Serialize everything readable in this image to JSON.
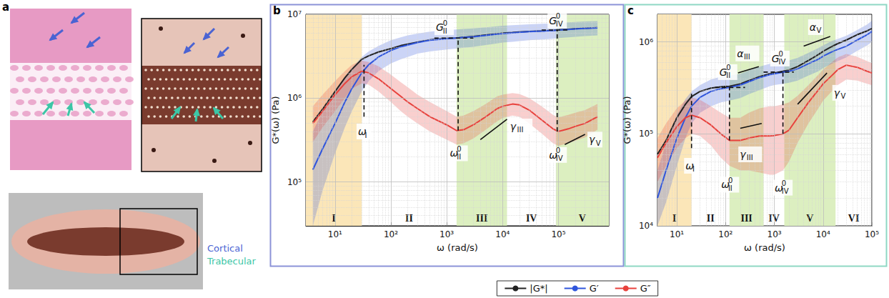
{
  "panel_a": {
    "panel": "a",
    "labels": [
      {
        "text": "Cortical",
        "color": "#4a63d3"
      },
      {
        "text": "Trabecular",
        "color": "#3cc6a6"
      }
    ]
  },
  "chart_data": [
    {
      "type": "line",
      "panel": "b",
      "log": true,
      "grid": true,
      "legend": "bottom",
      "x_label": "ω (rad/s)",
      "y_label": "G*(ω) (Pa)",
      "xlim": [
        3,
        800000.0
      ],
      "ylim": [
        30000.0,
        10000000.0
      ],
      "xticks": [
        {
          "value": 10,
          "label": "10¹"
        },
        {
          "value": 100,
          "label": "10²"
        },
        {
          "value": 1000,
          "label": "10³"
        },
        {
          "value": 10000,
          "label": "10⁴"
        },
        {
          "value": 100000,
          "label": "10⁵"
        }
      ],
      "yticks": [
        {
          "value": 100000,
          "label": "10⁵"
        },
        {
          "value": 1000000,
          "label": "10⁶"
        },
        {
          "value": 10000000,
          "label": "10⁷"
        }
      ],
      "x": [
        4,
        6,
        10,
        15,
        20,
        30,
        40,
        60,
        100,
        150,
        200,
        300,
        500,
        1000,
        1500,
        2000,
        3000,
        5000,
        8000,
        10000.0,
        15000.0,
        20000.0,
        30000.0,
        50000.0,
        80000.0,
        100000.0,
        150000.0,
        200000.0,
        300000.0,
        500000.0
      ],
      "series": [
        {
          "name": "|G*|",
          "color": "#222222",
          "values": [
            520000.0,
            740000.0,
            1200000.0,
            1750000.0,
            2200000.0,
            2900000.0,
            3200000.0,
            3550000.0,
            3900000.0,
            4230000.0,
            4400000.0,
            4650000.0,
            4950000.0,
            5150000.0,
            5220000.0,
            5320000.0,
            5430000.0,
            5650000.0,
            5860000.0,
            5960000.0,
            6060000.0,
            6150000.0,
            6240000.0,
            6330000.0,
            6420000.0,
            6520000.0,
            6620000.0,
            6720000.0,
            6820000.0,
            6930000.0
          ]
        },
        {
          "name": "G′",
          "color": "#2f55dc",
          "values": [
            140000.0,
            250000.0,
            500000.0,
            900000.0,
            1300000.0,
            2000000.0,
            2500000.0,
            3100000.0,
            3700000.0,
            4100000.0,
            4300000.0,
            4600000.0,
            4900000.0,
            5100000.0,
            5200000.0,
            5300000.0,
            5400000.0,
            5600000.0,
            5800000.0,
            5900000.0,
            6000000.0,
            6100000.0,
            6200000.0,
            6300000.0,
            6400000.0,
            6500000.0,
            6600000.0,
            6700000.0,
            6800000.0,
            6900000.0
          ],
          "lower": [
            30000.0,
            80000.0,
            220000.0,
            450000.0,
            700000.0,
            1200000.0,
            1600000.0,
            2100000.0,
            2600000.0,
            2900000.0,
            3100000.0,
            3400000.0,
            3600000.0,
            3800000.0,
            3900000.0,
            4000000.0,
            4100000.0,
            4300000.0,
            4500000.0,
            4600000.0,
            4700000.0,
            4800000.0,
            4900000.0,
            5000000.0,
            5100000.0,
            5200000.0,
            5300000.0,
            5400000.0,
            5500000.0,
            5600000.0
          ],
          "upper": [
            400000.0,
            700000.0,
            1200000.0,
            1800000.0,
            2300000.0,
            3100000.0,
            3600000.0,
            4200000.0,
            4900000.0,
            5300000.0,
            5600000.0,
            5900000.0,
            6200000.0,
            6500000.0,
            6600000.0,
            6700000.0,
            6800000.0,
            7000000.0,
            7200000.0,
            7300000.0,
            7400000.0,
            7500000.0,
            7600000.0,
            7700000.0,
            7800000.0,
            7900000.0,
            8000000.0,
            8100000.0,
            8200000.0,
            8300000.0
          ]
        },
        {
          "name": "G″",
          "color": "#e8413c",
          "values": [
            500000.0,
            700000.0,
            1100000.0,
            1500000.0,
            1800000.0,
            2100000.0,
            2000000.0,
            1700000.0,
            1300000.0,
            1050000.0,
            900000.0,
            750000.0,
            600000.0,
            480000.0,
            410000.0,
            420000.0,
            480000.0,
            600000.0,
            750000.0,
            800000.0,
            850000.0,
            830000.0,
            720000.0,
            550000.0,
            430000.0,
            400000.0,
            430000.0,
            460000.0,
            500000.0,
            600000.0
          ],
          "lower": [
            300000.0,
            450000.0,
            700000.0,
            1000000.0,
            1300000.0,
            1500000.0,
            1450000.0,
            1200000.0,
            900000.0,
            700000.0,
            600000.0,
            500000.0,
            400000.0,
            320000.0,
            280000.0,
            290000.0,
            330000.0,
            420000.0,
            530000.0,
            580000.0,
            620000.0,
            600000.0,
            500000.0,
            380000.0,
            290000.0,
            270000.0,
            290000.0,
            310000.0,
            340000.0,
            420000.0
          ],
          "upper": [
            800000.0,
            1100000.0,
            1600000.0,
            2100000.0,
            2500000.0,
            2800000.0,
            2700000.0,
            2400000.0,
            1900000.0,
            1550000.0,
            1350000.0,
            1100000.0,
            900000.0,
            700000.0,
            600000.0,
            620000.0,
            700000.0,
            850000.0,
            1050000.0,
            1100000.0,
            1150000.0,
            1120000.0,
            1000000.0,
            800000.0,
            630000.0,
            590000.0,
            630000.0,
            670000.0,
            720000.0,
            850000.0
          ]
        }
      ],
      "regions": [
        {
          "label": "I",
          "from": 3,
          "to": 30,
          "color": "#fbe6b8"
        },
        {
          "label": "II",
          "from": 30,
          "to": 1500
        },
        {
          "label": "III",
          "from": 1500,
          "to": 12000,
          "color": "#dcefc0"
        },
        {
          "label": "IV",
          "from": 12000,
          "to": 90000
        },
        {
          "label": "V",
          "from": 90000,
          "to": 800000.0,
          "color": "#dcefc0"
        }
      ],
      "annotations": [
        {
          "label": {
            "base": "ω",
            "sub": "I"
          },
          "x": [
            33,
            33
          ],
          "y": [
            600000.0,
            2500000.0
          ],
          "line_style": "dashed",
          "label_at": [
            33,
            400000.0
          ]
        },
        {
          "label": {
            "base": "ω",
            "sub": "II",
            "sup": "0"
          },
          "x": [
            1600,
            1600
          ],
          "y": [
            410000.0,
            5200000.0
          ],
          "line_style": "dashed",
          "label_at": [
            1600,
            220000.0
          ]
        },
        {
          "label": {
            "base": "ω",
            "sub": "IV",
            "sup": "0"
          },
          "x": [
            95000,
            95000
          ],
          "y": [
            400000.0,
            6500000.0
          ],
          "line_style": "dashed",
          "label_at": [
            95000,
            210000.0
          ]
        },
        {
          "label": {
            "base": "G",
            "sub": "II",
            "sup": "0"
          },
          "x": [
            600,
            3000
          ],
          "y": [
            5200000.0,
            5200000.0
          ],
          "line_style": "dashed",
          "label_at": [
            900,
            7000000.0
          ]
        },
        {
          "label": {
            "base": "G",
            "sub": "IV",
            "sup": "0"
          },
          "x": [
            50000,
            160000
          ],
          "y": [
            6500000.0,
            6500000.0
          ],
          "line_style": "dashed",
          "label_at": [
            95000,
            8400000.0
          ]
        },
        {
          "label": {
            "base": "γ",
            "sub": "III"
          },
          "x": [
            4000,
            12000
          ],
          "y": [
            320000.0,
            560000.0
          ],
          "line_style": "solid",
          "label_at": [
            21000,
            460000.0
          ]
        },
        {
          "label": {
            "base": "γ",
            "sub": "V"
          },
          "x": [
            130000,
            300000
          ],
          "y": [
            280000.0,
            370000.0
          ],
          "line_style": "solid",
          "label_at": [
            450000,
            320000.0
          ]
        }
      ]
    },
    {
      "type": "line",
      "panel": "c",
      "log": true,
      "grid": true,
      "legend": "bottom",
      "x_label": "ω (rad/s)",
      "y_label": "G*(ω) (Pa)",
      "xlim": [
        4,
        100000
      ],
      "ylim": [
        10000,
        2000000.0
      ],
      "xticks": [
        {
          "value": 10,
          "label": "10¹"
        },
        {
          "value": 100,
          "label": "10²"
        },
        {
          "value": 1000,
          "label": "10³"
        },
        {
          "value": 10000,
          "label": "10⁴"
        },
        {
          "value": 100000,
          "label": "10⁵"
        }
      ],
      "yticks": [
        {
          "value": 10000,
          "label": "10⁴"
        },
        {
          "value": 100000,
          "label": "10⁵"
        },
        {
          "value": 1000000,
          "label": "10⁶"
        }
      ],
      "x": [
        4,
        6,
        10,
        15,
        20,
        30,
        50,
        80,
        120,
        200,
        300,
        500,
        800,
        1000,
        1500,
        2000,
        3000,
        5000,
        8000,
        10000.0,
        15000.0,
        20000.0,
        30000.0,
        50000.0,
        80000.0,
        100000.0
      ],
      "series": [
        {
          "name": "|G*|",
          "color": "#222222",
          "values": [
            60000.0,
            85000.0,
            150000.0,
            210000.0,
            255000.0,
            290000.0,
            315000.0,
            325000.0,
            330000.0,
            350000.0,
            380000.0,
            420000.0,
            450000.0,
            460000.0,
            480000.0,
            495000.0,
            540000.0,
            630000.0,
            730000.0,
            790000.0,
            890000.0,
            960000.0,
            1050000.0,
            1200000.0,
            1320000.0,
            1400000.0
          ]
        },
        {
          "name": "G′",
          "color": "#2f55dc",
          "values": [
            20000.0,
            40000.0,
            90000.0,
            150000.0,
            200000.0,
            250000.0,
            290000.0,
            310000.0,
            320000.0,
            340000.0,
            370000.0,
            410000.0,
            440000.0,
            450000.0,
            470000.0,
            480000.0,
            510000.0,
            580000.0,
            650000.0,
            700000.0,
            780000.0,
            830000.0,
            900000.0,
            1050000.0,
            1200000.0,
            1300000.0
          ],
          "lower": [
            10000.0,
            18000.0,
            45000.0,
            90000.0,
            130000.0,
            170000.0,
            200000.0,
            220000.0,
            230000.0,
            245000.0,
            270000.0,
            300000.0,
            330000.0,
            340000.0,
            350000.0,
            360000.0,
            380000.0,
            430000.0,
            480000.0,
            520000.0,
            580000.0,
            620000.0,
            680000.0,
            800000.0,
            920000.0,
            1000000.0
          ],
          "upper": [
            40000.0,
            80000.0,
            160000.0,
            240000.0,
            290000.0,
            340000.0,
            390000.0,
            420000.0,
            430000.0,
            450000.0,
            490000.0,
            540000.0,
            580000.0,
            590000.0,
            610000.0,
            630000.0,
            670000.0,
            760000.0,
            860000.0,
            920000.0,
            1020000.0,
            1080000.0,
            1170000.0,
            1350000.0,
            1550000.0,
            1700000.0
          ]
        },
        {
          "name": "G″",
          "color": "#e8413c",
          "values": [
            55000.0,
            80000.0,
            120000.0,
            150000.0,
            160000.0,
            150000.0,
            125000.0,
            100000.0,
            85000.0,
            85000.0,
            90000.0,
            95000.0,
            95000.0,
            96000.0,
            100000.0,
            110000.0,
            150000.0,
            220000.0,
            300000.0,
            350000.0,
            430000.0,
            500000.0,
            560000.0,
            530000.0,
            480000.0,
            460000.0
          ],
          "lower": [
            30000.0,
            45000.0,
            70000.0,
            90000.0,
            100000.0,
            95000.0,
            75000.0,
            55000.0,
            45000.0,
            40000.0,
            40000.0,
            38000.0,
            36000.0,
            36000.0,
            40000.0,
            50000.0,
            80000.0,
            130000.0,
            190000.0,
            230000.0,
            290000.0,
            340000.0,
            390000.0,
            380000.0,
            350000.0,
            340000.0
          ],
          "upper": [
            90000.0,
            130000.0,
            190000.0,
            230000.0,
            250000.0,
            235000.0,
            200000.0,
            170000.0,
            150000.0,
            150000.0,
            170000.0,
            190000.0,
            200000.0,
            200000.0,
            210000.0,
            220000.0,
            260000.0,
            340000.0,
            440000.0,
            500000.0,
            600000.0,
            680000.0,
            740000.0,
            690000.0,
            620000.0,
            590000.0
          ]
        }
      ],
      "regions": [
        {
          "label": "I",
          "from": 4,
          "to": 20,
          "color": "#fbe6b8"
        },
        {
          "label": "II",
          "from": 20,
          "to": 120
        },
        {
          "label": "III",
          "from": 120,
          "to": 600,
          "color": "#dcefc0"
        },
        {
          "label": "IV",
          "from": 600,
          "to": 1600
        },
        {
          "label": "V",
          "from": 1600,
          "to": 18000,
          "color": "#dcefc0"
        },
        {
          "label": "VI",
          "from": 18000,
          "to": 100000
        }
      ],
      "annotations": [
        {
          "label": {
            "base": "ω",
            "sub": "I"
          },
          "x": [
            20,
            20
          ],
          "y": [
            70000.0,
            280000.0
          ],
          "line_style": "dashed",
          "label_at": [
            20,
            45000.0
          ]
        },
        {
          "label": {
            "base": "ω",
            "sub": "II",
            "sup": "0"
          },
          "x": [
            120,
            120
          ],
          "y": [
            85000.0,
            320000.0
          ],
          "line_style": "dashed",
          "label_at": [
            120,
            28000.0
          ]
        },
        {
          "label": {
            "base": "ω",
            "sub": "IV",
            "sup": "0"
          },
          "x": [
            1500,
            1500
          ],
          "y": [
            100000.0,
            470000.0
          ],
          "line_style": "dashed",
          "label_at": [
            1500,
            26000.0
          ]
        },
        {
          "label": {
            "base": "G",
            "sub": "II",
            "sup": "0"
          },
          "x": [
            60,
            250
          ],
          "y": [
            320000.0,
            320000.0
          ],
          "line_style": "dashed",
          "label_at": [
            110,
            470000.0
          ]
        },
        {
          "label": {
            "base": "G",
            "sub": "IV",
            "sup": "0"
          },
          "x": [
            600,
            2500
          ],
          "y": [
            470000.0,
            470000.0
          ],
          "line_style": "dashed",
          "label_at": [
            1300,
            660000.0
          ]
        },
        {
          "label": {
            "base": "α",
            "sub": "III"
          },
          "x": [
            180,
            480
          ],
          "y": [
            460000.0,
            540000.0
          ],
          "line_style": "solid",
          "label_at": [
            280,
            750000.0
          ]
        },
        {
          "label": {
            "base": "α",
            "sub": "V"
          },
          "x": [
            4000,
            14000
          ],
          "y": [
            900000.0,
            1150000.0
          ],
          "line_style": "solid",
          "label_at": [
            7000,
            1450000.0
          ]
        },
        {
          "label": {
            "base": "γ",
            "sub": "III"
          },
          "x": [
            200,
            550
          ],
          "y": [
            115000.0,
            130000.0
          ],
          "line_style": "solid",
          "label_at": [
            320,
            60000.0
          ]
        },
        {
          "label": {
            "base": "γ",
            "sub": "V"
          },
          "x": [
            3000,
            12000
          ],
          "y": [
            210000.0,
            460000.0
          ],
          "line_style": "solid",
          "label_at": [
            22000,
            280000.0
          ]
        }
      ]
    }
  ]
}
